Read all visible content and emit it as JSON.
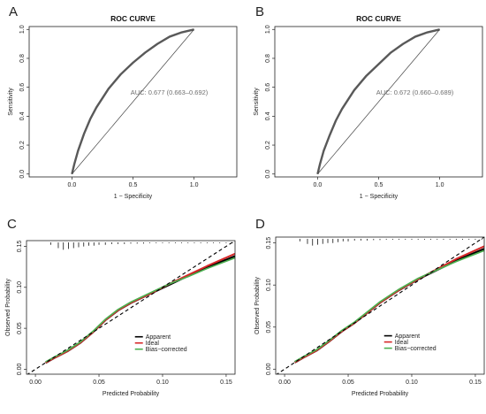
{
  "chart_data": [
    {
      "panel": "A",
      "type": "line",
      "title": "ROC CURVE",
      "xlabel": "1 − Specificity",
      "ylabel": "Sensitivity",
      "xlim": [
        -0.35,
        1.35
      ],
      "ylim": [
        -0.02,
        1.02
      ],
      "xticks": [
        0.0,
        0.5,
        1.0
      ],
      "xtick_labels": [
        "0.0",
        "0.5",
        "1.0"
      ],
      "yticks": [
        0.0,
        0.2,
        0.4,
        0.6,
        0.8,
        1.0
      ],
      "ytick_labels": [
        "0.0",
        "0.2",
        "0.4",
        "0.6",
        "0.8",
        "1.0"
      ],
      "annotation": "AUC: 0.677 (0.663–0.692)",
      "annotation_at": [
        0.48,
        0.55
      ],
      "grid": false,
      "series": [
        {
          "role": "roc",
          "color": "#595959",
          "x": [
            0.0,
            0.02,
            0.05,
            0.1,
            0.15,
            0.2,
            0.3,
            0.4,
            0.5,
            0.6,
            0.7,
            0.8,
            0.9,
            1.0
          ],
          "y": [
            0.0,
            0.07,
            0.16,
            0.28,
            0.38,
            0.46,
            0.59,
            0.69,
            0.77,
            0.84,
            0.9,
            0.95,
            0.98,
            1.0
          ]
        },
        {
          "role": "reference",
          "color": "#444444",
          "x": [
            0.0,
            1.0
          ],
          "y": [
            0.0,
            1.0
          ]
        }
      ]
    },
    {
      "panel": "B",
      "type": "line",
      "title": "ROC CURVE",
      "xlabel": "1 − Specificity",
      "ylabel": "Sensitivity",
      "xlim": [
        -0.35,
        1.35
      ],
      "ylim": [
        -0.02,
        1.02
      ],
      "xticks": [
        0.0,
        0.5,
        1.0
      ],
      "xtick_labels": [
        "0.0",
        "0.5",
        "1.0"
      ],
      "yticks": [
        0.0,
        0.2,
        0.4,
        0.6,
        0.8,
        1.0
      ],
      "ytick_labels": [
        "0.0",
        "0.2",
        "0.4",
        "0.6",
        "0.8",
        "1.0"
      ],
      "annotation": "AUC: 0.672 (0.660–0.689)",
      "annotation_at": [
        0.48,
        0.55
      ],
      "grid": false,
      "series": [
        {
          "role": "roc",
          "color": "#595959",
          "x": [
            0.0,
            0.02,
            0.05,
            0.1,
            0.15,
            0.2,
            0.3,
            0.4,
            0.5,
            0.6,
            0.7,
            0.8,
            0.9,
            1.0
          ],
          "y": [
            0.0,
            0.07,
            0.16,
            0.27,
            0.37,
            0.45,
            0.58,
            0.68,
            0.76,
            0.84,
            0.9,
            0.95,
            0.98,
            1.0
          ]
        },
        {
          "role": "reference",
          "color": "#444444",
          "x": [
            0.0,
            1.0
          ],
          "y": [
            0.0,
            1.0
          ]
        }
      ]
    },
    {
      "panel": "C",
      "type": "line",
      "title": "",
      "xlabel": "Predicted Probability",
      "ylabel": "Observed Probability",
      "xlim": [
        -0.007,
        0.157
      ],
      "ylim": [
        -0.006,
        0.157
      ],
      "xticks": [
        0.0,
        0.05,
        0.1,
        0.15
      ],
      "xtick_labels": [
        "0.00",
        "0.05",
        "0.10",
        "0.15"
      ],
      "yticks": [
        0.0,
        0.05,
        0.1,
        0.15
      ],
      "ytick_labels": [
        "0.00",
        "0.05",
        "0.10",
        "0.15"
      ],
      "legend_position": "bottom-right",
      "grid": false,
      "rug": {
        "x": [
          0.012,
          0.018,
          0.022,
          0.026,
          0.03,
          0.034,
          0.038,
          0.042,
          0.046,
          0.05,
          0.055,
          0.06,
          0.065,
          0.07,
          0.075,
          0.08,
          0.085,
          0.09,
          0.095,
          0.1,
          0.105,
          0.11,
          0.115,
          0.12,
          0.125,
          0.13,
          0.135,
          0.14,
          0.145,
          0.15,
          0.155
        ],
        "height": [
          0.003,
          0.007,
          0.009,
          0.008,
          0.007,
          0.006,
          0.005,
          0.004,
          0.004,
          0.003,
          0.003,
          0.002,
          0.002,
          0.002,
          0.0015,
          0.0015,
          0.0015,
          0.001,
          0.001,
          0.001,
          0.001,
          0.001,
          0.001,
          0.001,
          0.001,
          0.001,
          0.001,
          0.001,
          0.001,
          0.001,
          0.001
        ]
      },
      "series": [
        {
          "name": "Apparent",
          "color": "#000000",
          "dash": false,
          "x": [
            0.008,
            0.015,
            0.025,
            0.035,
            0.045,
            0.055,
            0.065,
            0.075,
            0.09,
            0.105,
            0.12,
            0.135,
            0.157
          ],
          "y": [
            0.008,
            0.014,
            0.022,
            0.032,
            0.045,
            0.06,
            0.072,
            0.081,
            0.092,
            0.103,
            0.114,
            0.124,
            0.138
          ]
        },
        {
          "name": "Ideal",
          "color": "#d62728",
          "dash": false,
          "x": [
            0.008,
            0.015,
            0.025,
            0.035,
            0.045,
            0.055,
            0.065,
            0.075,
            0.09,
            0.105,
            0.12,
            0.135,
            0.157
          ],
          "y": [
            0.008,
            0.014,
            0.022,
            0.032,
            0.045,
            0.06,
            0.072,
            0.081,
            0.092,
            0.104,
            0.115,
            0.126,
            0.141
          ]
        },
        {
          "name": "Bias−corrected",
          "color": "#4caf50",
          "dash": false,
          "x": [
            0.008,
            0.015,
            0.025,
            0.035,
            0.045,
            0.055,
            0.065,
            0.075,
            0.09,
            0.105,
            0.12,
            0.135,
            0.157
          ],
          "y": [
            0.009,
            0.015,
            0.023,
            0.033,
            0.046,
            0.061,
            0.073,
            0.082,
            0.093,
            0.104,
            0.113,
            0.123,
            0.136
          ]
        },
        {
          "role": "reference",
          "color": "#000000",
          "dash": true,
          "x": [
            -0.007,
            0.157
          ],
          "y": [
            -0.007,
            0.157
          ]
        }
      ]
    },
    {
      "panel": "D",
      "type": "line",
      "title": "",
      "xlabel": "Predicted Probability",
      "ylabel": "Observed Probability",
      "xlim": [
        -0.007,
        0.157
      ],
      "ylim": [
        -0.006,
        0.157
      ],
      "xticks": [
        0.0,
        0.05,
        0.1,
        0.15
      ],
      "xtick_labels": [
        "0.00",
        "0.05",
        "0.10",
        "0.15"
      ],
      "yticks": [
        0.0,
        0.05,
        0.1,
        0.15
      ],
      "ytick_labels": [
        "0.00",
        "0.05",
        "0.10",
        "0.15"
      ],
      "legend_position": "bottom-right",
      "grid": false,
      "rug": {
        "x": [
          0.012,
          0.018,
          0.022,
          0.026,
          0.03,
          0.034,
          0.038,
          0.042,
          0.046,
          0.05,
          0.055,
          0.06,
          0.065,
          0.07,
          0.075,
          0.08,
          0.085,
          0.09,
          0.095,
          0.1,
          0.105,
          0.11,
          0.115,
          0.12,
          0.125,
          0.13,
          0.135,
          0.14,
          0.145,
          0.15,
          0.155
        ],
        "height": [
          0.003,
          0.006,
          0.008,
          0.007,
          0.006,
          0.005,
          0.005,
          0.004,
          0.003,
          0.003,
          0.002,
          0.002,
          0.002,
          0.0015,
          0.0015,
          0.001,
          0.001,
          0.001,
          0.001,
          0.001,
          0.001,
          0.001,
          0.001,
          0.001,
          0.001,
          0.001,
          0.001,
          0.001,
          0.001,
          0.001,
          0.001
        ]
      },
      "series": [
        {
          "name": "Apparent",
          "color": "#000000",
          "dash": false,
          "x": [
            0.008,
            0.015,
            0.025,
            0.035,
            0.045,
            0.055,
            0.065,
            0.075,
            0.09,
            0.105,
            0.12,
            0.135,
            0.157
          ],
          "y": [
            0.008,
            0.014,
            0.022,
            0.033,
            0.045,
            0.055,
            0.067,
            0.079,
            0.094,
            0.107,
            0.118,
            0.129,
            0.143
          ]
        },
        {
          "name": "Ideal",
          "color": "#d62728",
          "dash": false,
          "x": [
            0.008,
            0.015,
            0.025,
            0.035,
            0.045,
            0.055,
            0.065,
            0.075,
            0.09,
            0.105,
            0.12,
            0.135,
            0.157
          ],
          "y": [
            0.008,
            0.014,
            0.022,
            0.033,
            0.045,
            0.055,
            0.067,
            0.079,
            0.094,
            0.107,
            0.119,
            0.131,
            0.146
          ]
        },
        {
          "name": "Bias−corrected",
          "color": "#4caf50",
          "dash": false,
          "x": [
            0.008,
            0.015,
            0.025,
            0.035,
            0.045,
            0.055,
            0.065,
            0.075,
            0.09,
            0.105,
            0.12,
            0.135,
            0.157
          ],
          "y": [
            0.009,
            0.015,
            0.023,
            0.034,
            0.046,
            0.056,
            0.068,
            0.08,
            0.095,
            0.108,
            0.118,
            0.128,
            0.141
          ]
        },
        {
          "role": "reference",
          "color": "#000000",
          "dash": true,
          "x": [
            -0.007,
            0.157
          ],
          "y": [
            -0.007,
            0.157
          ]
        }
      ]
    }
  ]
}
